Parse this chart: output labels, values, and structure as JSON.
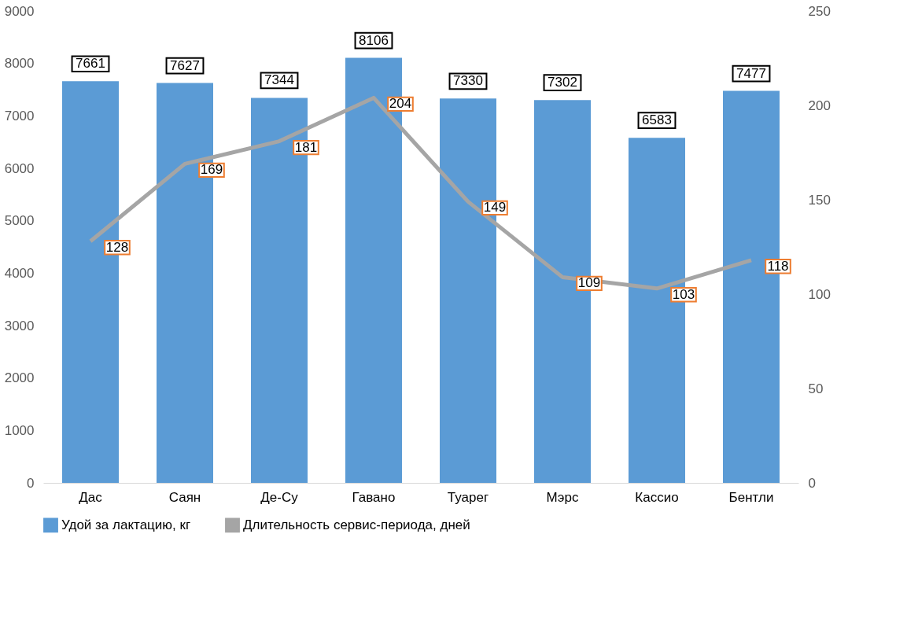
{
  "chart_data": {
    "type": "bar",
    "categories": [
      "Дас",
      "Саян",
      "Де-Су",
      "Гавано",
      "Туарег",
      "Мэрс",
      "Кассио",
      "Бентли"
    ],
    "series": [
      {
        "name": "Удой за лактацию, кг",
        "color": "#5b9bd5",
        "values": [
          7661,
          7627,
          7344,
          8106,
          7330,
          7302,
          6583,
          7477
        ]
      },
      {
        "name": "Длительность сервис-периода, дней",
        "type": "line",
        "axis": "y2",
        "color": "#a5a5a5",
        "values": [
          128,
          169,
          181,
          204,
          149,
          109,
          103,
          118
        ]
      }
    ],
    "ylim": [
      0,
      9000
    ],
    "yticks": [
      0,
      1000,
      2000,
      3000,
      4000,
      5000,
      6000,
      7000,
      8000,
      9000
    ],
    "y2lim": [
      0,
      250
    ],
    "y2ticks": [
      0,
      50,
      100,
      150,
      200,
      250
    ],
    "data_labels": true,
    "grid": false,
    "legend": "bottom"
  }
}
